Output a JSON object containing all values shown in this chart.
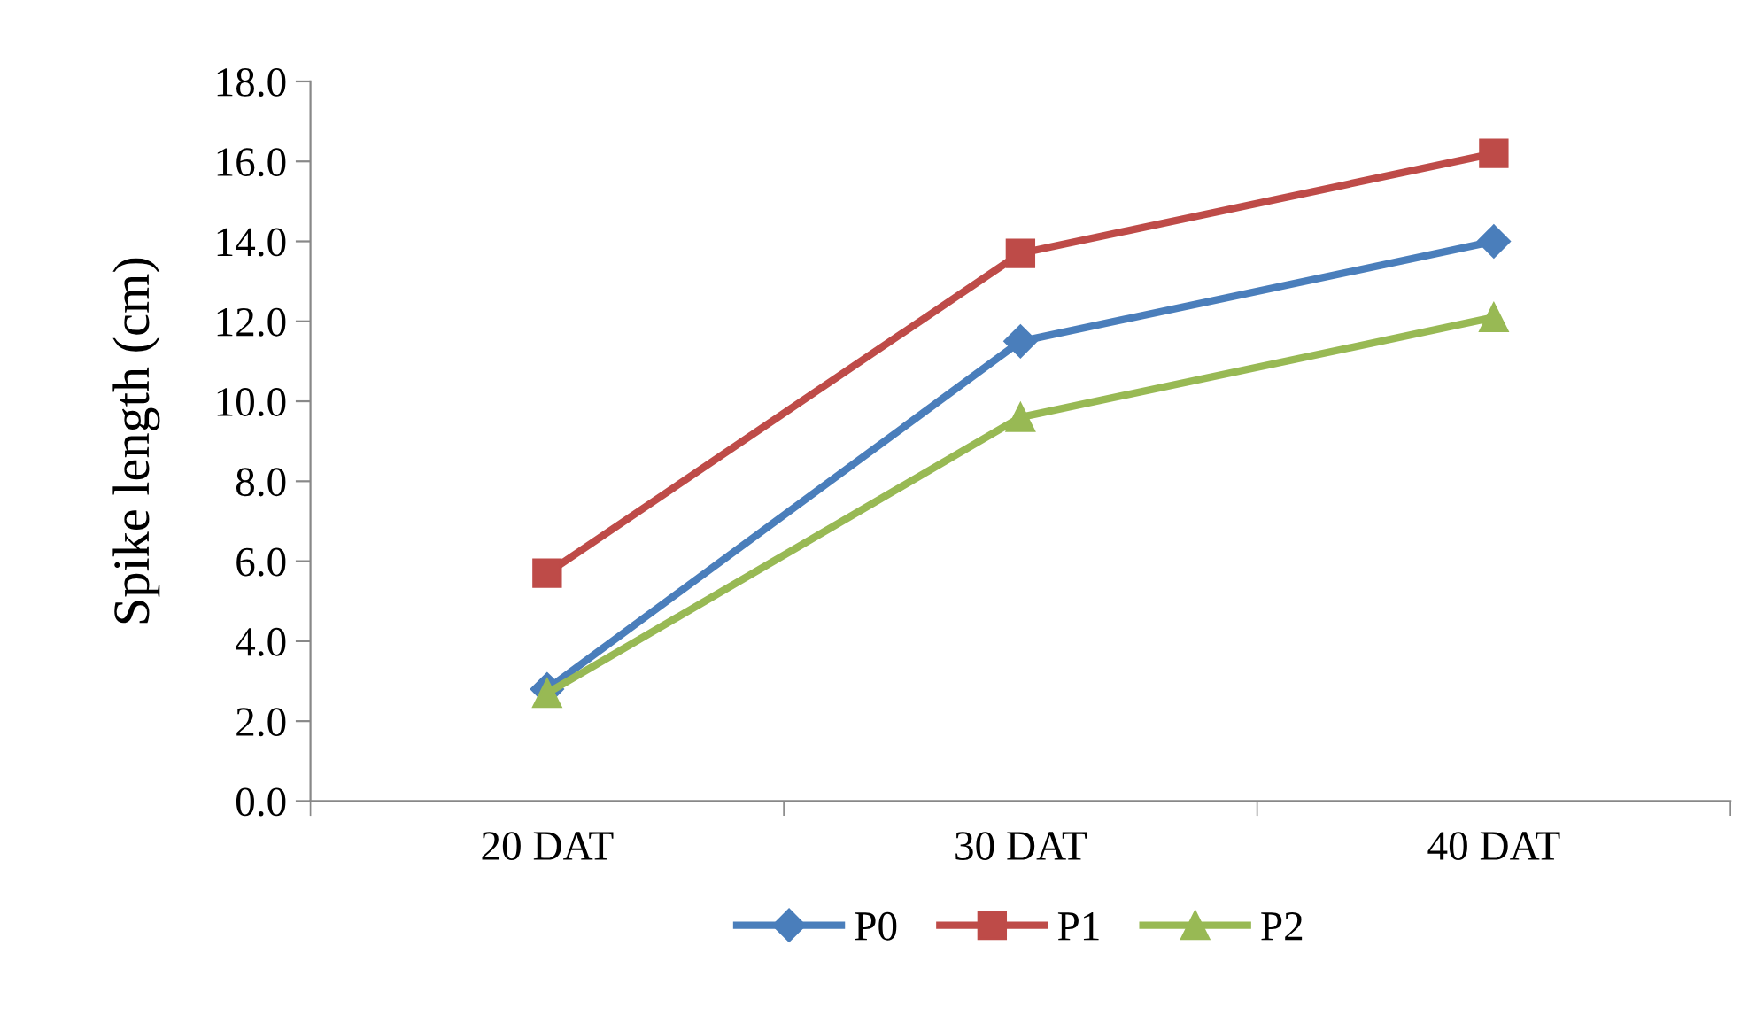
{
  "chart_data": {
    "type": "line",
    "ylabel": "Spike length (cm)",
    "categories": [
      "20 DAT",
      "30 DAT",
      "40 DAT"
    ],
    "series": [
      {
        "name": "P0",
        "color": "#4a7ebb",
        "values": [
          2.8,
          11.5,
          14.0
        ],
        "marker": "diamond"
      },
      {
        "name": "P1",
        "color": "#be4b48",
        "values": [
          5.7,
          13.7,
          16.2
        ],
        "marker": "square"
      },
      {
        "name": "P2",
        "color": "#98b954",
        "values": [
          2.7,
          9.6,
          12.1
        ],
        "marker": "triangle"
      }
    ],
    "ylim": [
      0,
      18
    ],
    "yticks": [
      {
        "value": 0,
        "label": "0.0"
      },
      {
        "value": 2,
        "label": "2.0"
      },
      {
        "value": 4,
        "label": "4.0"
      },
      {
        "value": 6,
        "label": "6.0"
      },
      {
        "value": 8,
        "label": "8.0"
      },
      {
        "value": 10,
        "label": "10.0"
      },
      {
        "value": 12,
        "label": "12.0"
      },
      {
        "value": 14,
        "label": "14.0"
      },
      {
        "value": 16,
        "label": "16.0"
      },
      {
        "value": 18,
        "label": "18.0"
      }
    ],
    "grid": false,
    "legend": "bottom",
    "line_style": "solid"
  }
}
